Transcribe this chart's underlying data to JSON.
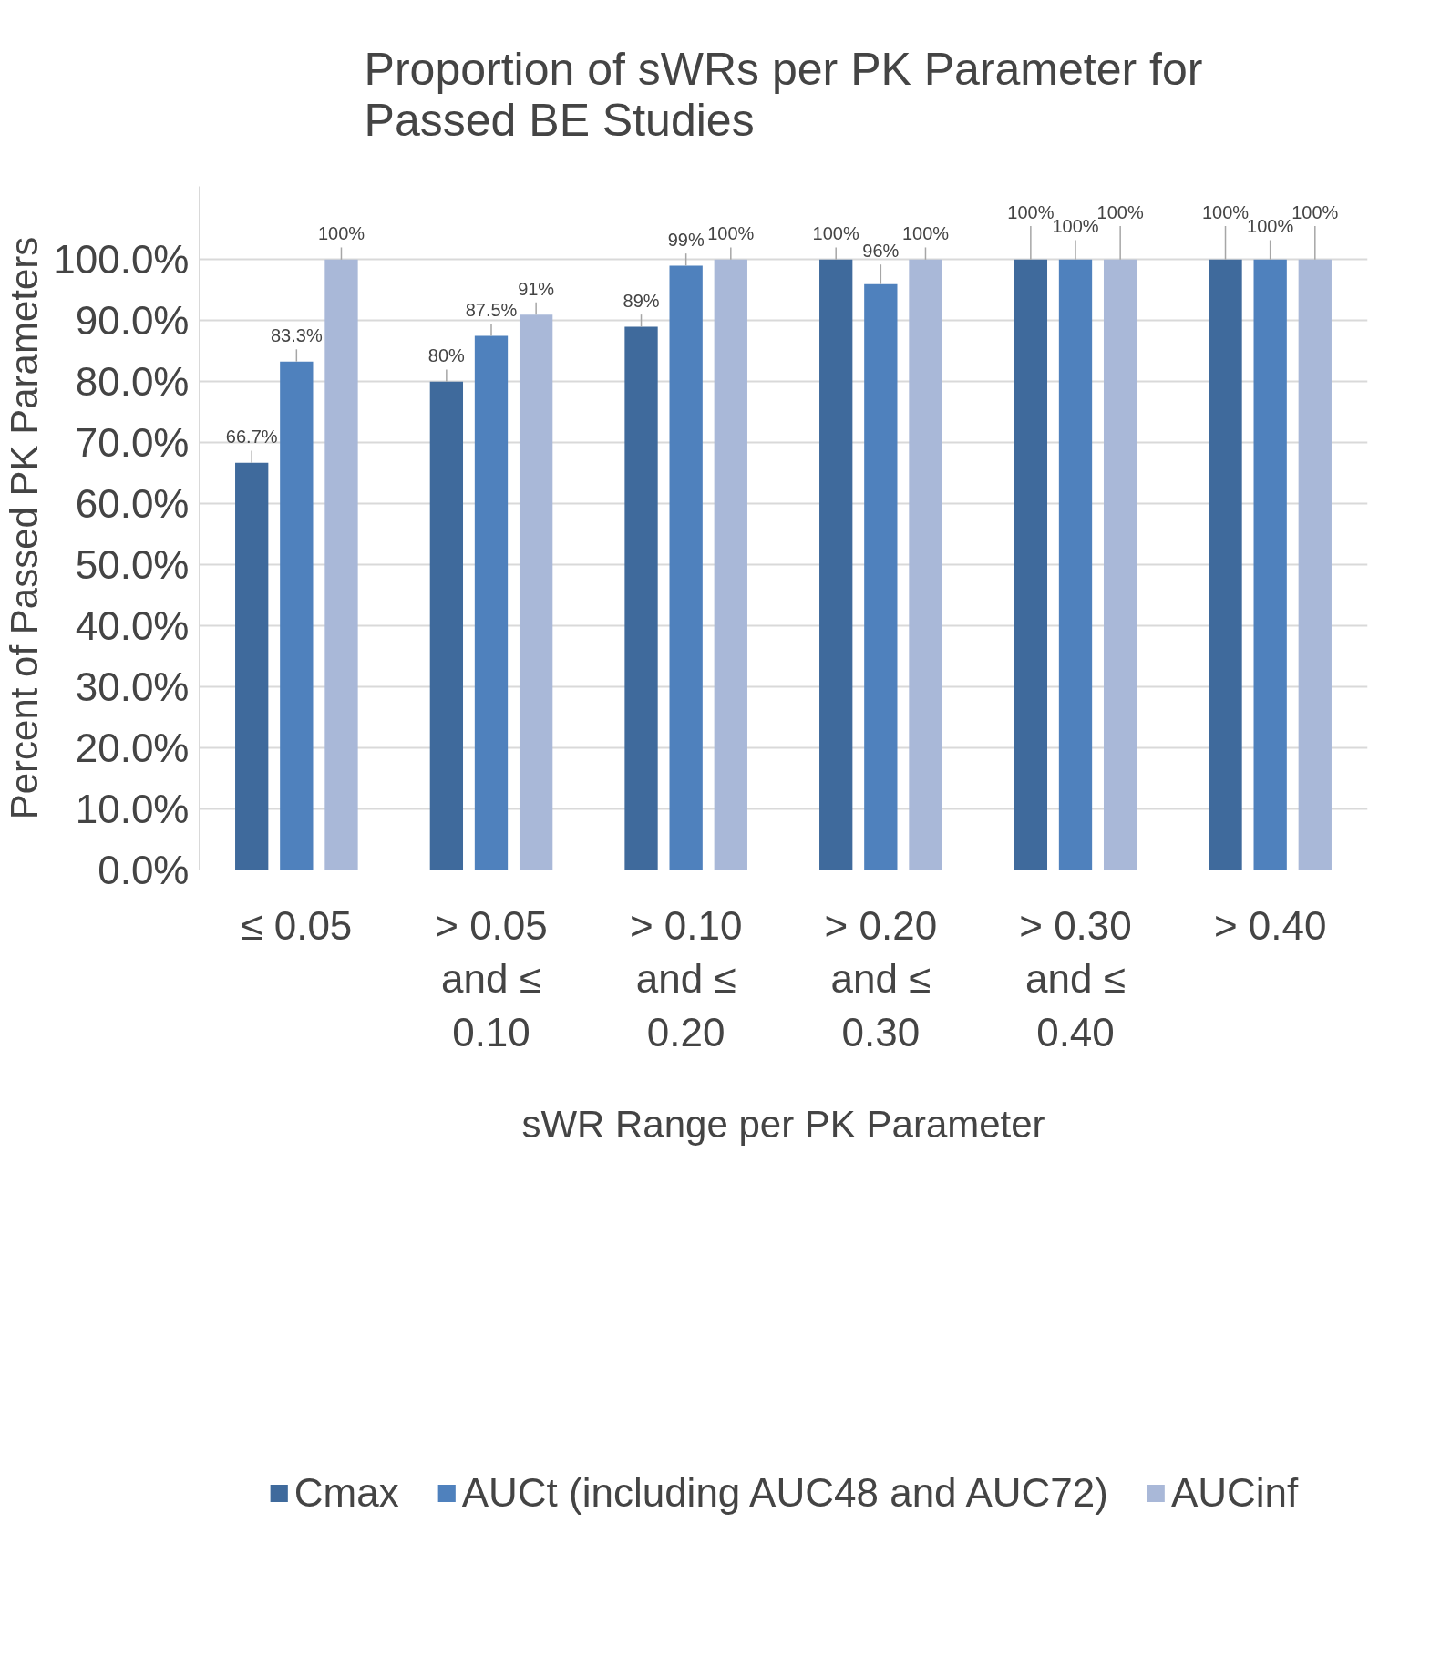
{
  "chart_data": {
    "type": "bar",
    "title": "Proportion of sWRs per PK Parameter for Passed BE Studies",
    "xlabel": "sWR Range per PK Parameter",
    "ylabel": "Percent of Passed PK Parameters",
    "categories": [
      "≤ 0.05",
      "> 0.05 and ≤ 0.10",
      "> 0.10 and ≤ 0.20",
      "> 0.20 and ≤ 0.30",
      "> 0.30 and ≤ 0.40",
      "> 0.40"
    ],
    "series": [
      {
        "name": "Cmax",
        "color": "#3f6a9c",
        "values": [
          66.7,
          80,
          89,
          100,
          100,
          100
        ],
        "value_labels": [
          "66.7%",
          "80%",
          "89%",
          "100%",
          "100%",
          "100%"
        ]
      },
      {
        "name": "AUCt (including AUC48 and AUC72)",
        "color": "#4f81bd",
        "values": [
          83.3,
          87.5,
          99,
          96,
          100,
          100
        ],
        "value_labels": [
          "83.3%",
          "87.5%",
          "99%",
          "96%",
          "100%",
          "100%"
        ]
      },
      {
        "name": "AUCinf",
        "color": "#a9b8d8",
        "values": [
          100,
          91,
          100,
          100,
          100,
          100
        ],
        "value_labels": [
          "100%",
          "91%",
          "100%",
          "100%",
          "100%",
          "100%"
        ]
      }
    ],
    "ylim": [
      0,
      112
    ],
    "yticks": [
      {
        "value": 0,
        "label": "0.0%"
      },
      {
        "value": 10,
        "label": "10.0%"
      },
      {
        "value": 20,
        "label": "20.0%"
      },
      {
        "value": 30,
        "label": "30.0%"
      },
      {
        "value": 40,
        "label": "40.0%"
      },
      {
        "value": 50,
        "label": "50.0%"
      },
      {
        "value": 60,
        "label": "60.0%"
      },
      {
        "value": 70,
        "label": "70.0%"
      },
      {
        "value": 80,
        "label": "80.0%"
      },
      {
        "value": 90,
        "label": "90.0%"
      },
      {
        "value": 100,
        "label": "100.0%"
      }
    ],
    "grid": "y",
    "legend": "bottom"
  }
}
